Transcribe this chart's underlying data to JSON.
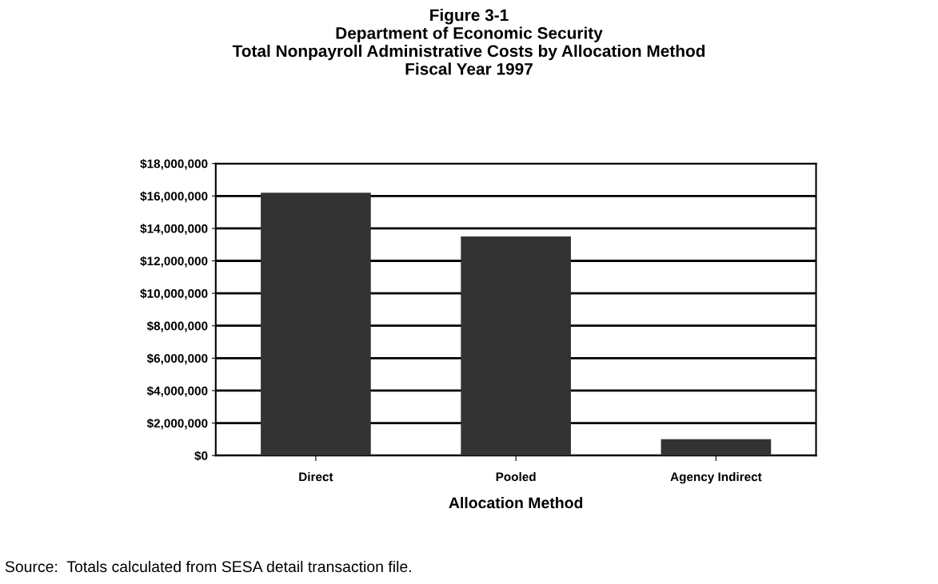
{
  "chart_data": {
    "type": "bar",
    "title": "Figure 3-1\nDepartment of Economic Security\nTotal Nonpayroll Administrative Costs by Allocation Method\nFiscal Year 1997",
    "xlabel": "Allocation Method",
    "categories": [
      "Direct",
      "Pooled",
      "Agency Indirect"
    ],
    "values": [
      16200000,
      13500000,
      1000000
    ],
    "color": "#333333",
    "ylim": [
      0,
      18000000
    ],
    "yticks": [
      {
        "value": 0,
        "label": "$0"
      },
      {
        "value": 2000000,
        "label": "$2,000,000"
      },
      {
        "value": 4000000,
        "label": "$4,000,000"
      },
      {
        "value": 6000000,
        "label": "$6,000,000"
      },
      {
        "value": 8000000,
        "label": "$8,000,000"
      },
      {
        "value": 10000000,
        "label": "$10,000,000"
      },
      {
        "value": 12000000,
        "label": "$12,000,000"
      },
      {
        "value": 14000000,
        "label": "$14,000,000"
      },
      {
        "value": 16000000,
        "label": "$16,000,000"
      },
      {
        "value": 18000000,
        "label": "$18,000,000"
      }
    ],
    "grid": "y",
    "annotations": [
      "Source:  Totals calculated from SESA detail transaction file."
    ]
  }
}
